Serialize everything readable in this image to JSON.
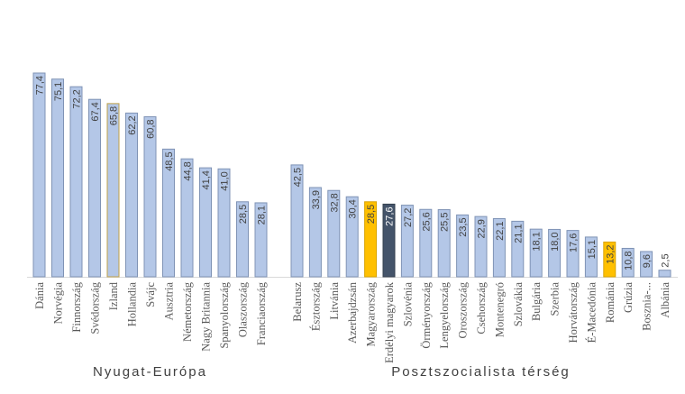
{
  "chart_data": {
    "type": "bar",
    "title": "",
    "xlabel": "",
    "ylabel": "",
    "ylim": [
      0,
      80
    ],
    "grid": false,
    "groups": [
      {
        "name": "Nyugat-Európa",
        "categories": [
          "Dánia",
          "Norvégia",
          "Finnország",
          "Svédország",
          "Izland",
          "Hollandia",
          "Svájc",
          "Ausztria",
          "Németország",
          "Nagy Britannia",
          "Spanyolország",
          "Olaszország",
          "Franciaország"
        ],
        "values": [
          77.4,
          75.1,
          72.2,
          67.4,
          65.8,
          62.2,
          60.8,
          48.5,
          44.8,
          41.4,
          41.0,
          28.5,
          28.1
        ],
        "labels": [
          "77,4",
          "75,1",
          "72,2",
          "67,4",
          "65,8",
          "62,2",
          "60,8",
          "48,5",
          "44,8",
          "41,4",
          "41,0",
          "28,5",
          "28,1"
        ],
        "highlight": [
          null,
          null,
          null,
          null,
          "outline",
          null,
          null,
          null,
          null,
          null,
          null,
          null,
          null
        ]
      },
      {
        "name": "Posztszocialista térség",
        "categories": [
          "Belarusz",
          "Észtország",
          "Litvánia",
          "Azerbajdzsán",
          "Magyarország",
          "Erdélyi magyarok",
          "Szlovénia",
          "Örményország",
          "Lengyelország",
          "Oroszország",
          "Csehország",
          "Montenegró",
          "Szlovákia",
          "Bulgária",
          "Szerbia",
          "Horvátország",
          "É-Macedónia",
          "Románia",
          "Grúzia",
          "Bosznia-...",
          "Albánia"
        ],
        "values": [
          42.5,
          33.9,
          32.8,
          30.4,
          28.5,
          27.6,
          27.2,
          25.6,
          25.5,
          23.5,
          22.9,
          22.1,
          21.1,
          18.1,
          18.0,
          17.6,
          15.1,
          13.2,
          10.8,
          9.6,
          2.5
        ],
        "labels": [
          "42,5",
          "33,9",
          "32,8",
          "30,4",
          "28,5",
          "27,6",
          "27,2",
          "25,6",
          "25,5",
          "23,5",
          "22,9",
          "22,1",
          "21,1",
          "18,1",
          "18,0",
          "17,6",
          "15,1",
          "13,2",
          "10,8",
          "9,6",
          "2,5"
        ],
        "highlight": [
          null,
          null,
          null,
          null,
          "yellow",
          "dark",
          null,
          null,
          null,
          null,
          null,
          null,
          null,
          null,
          null,
          null,
          null,
          "yellow",
          null,
          null,
          null
        ]
      }
    ],
    "colors": {
      "default": "#b4c7e7",
      "border": "#7f93b5",
      "yellow": "#ffc000",
      "dark": "#44546a",
      "outline": "#bfa14a"
    }
  }
}
